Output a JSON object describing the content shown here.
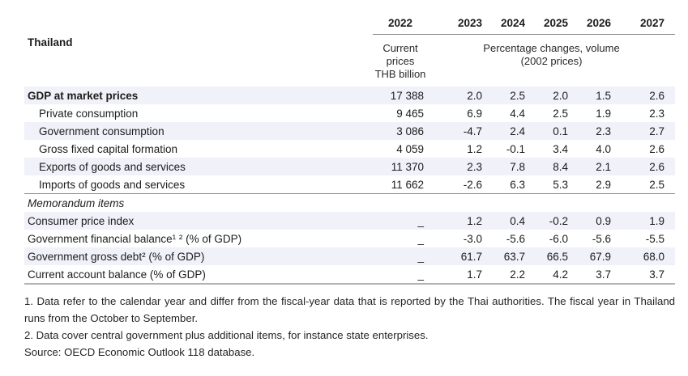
{
  "title": "Thailand",
  "header": {
    "years": [
      "2022",
      "2023",
      "2024",
      "2025",
      "2026",
      "2027"
    ],
    "col_2022_subtitle": [
      "Current prices",
      "THB billion"
    ],
    "pct_subtitle": [
      "Percentage changes, volume",
      "(2002 prices)"
    ]
  },
  "colors": {
    "row_shade": "#f0f1f9",
    "header_rule": "#8a8a8a",
    "section_rule": "#8c8c8c",
    "bottom_rule": "#b3b3b3"
  },
  "table": {
    "rows": [
      {
        "label": "GDP at market prices",
        "bold": true,
        "shaded": true,
        "values": [
          "17 388",
          "2.0",
          "2.5",
          "2.0",
          "1.5",
          "2.6"
        ]
      },
      {
        "label": "Private consumption",
        "indent": true,
        "values": [
          "9 465",
          "6.9",
          "4.4",
          "2.5",
          "1.9",
          "2.3"
        ]
      },
      {
        "label": "Government consumption",
        "indent": true,
        "shaded": true,
        "values": [
          "3 086",
          "-4.7",
          "2.4",
          "0.1",
          "2.3",
          "2.7"
        ]
      },
      {
        "label": "Gross fixed capital formation",
        "indent": true,
        "values": [
          "4 059",
          "1.2",
          "-0.1",
          "3.4",
          "4.0",
          "2.6"
        ]
      },
      {
        "label": "Exports of goods and services",
        "indent": true,
        "shaded": true,
        "values": [
          "11 370",
          "2.3",
          "7.8",
          "8.4",
          "2.1",
          "2.6"
        ]
      },
      {
        "label": "Imports of goods and services",
        "indent": true,
        "values": [
          "11 662",
          "-2.6",
          "6.3",
          "5.3",
          "2.9",
          "2.5"
        ]
      },
      {
        "label": "Memorandum items",
        "italic": true,
        "section": true,
        "top_border": true
      },
      {
        "label": "Consumer price index",
        "shaded": true,
        "values": [
          "_",
          "1.2",
          "0.4",
          "-0.2",
          "0.9",
          "1.9"
        ]
      },
      {
        "label": "Government financial balance¹ ² (% of GDP)",
        "values": [
          "_",
          "-3.0",
          "-5.6",
          "-6.0",
          "-5.6",
          "-5.5"
        ]
      },
      {
        "label": "Government gross debt² (% of GDP)",
        "shaded": true,
        "values": [
          "_",
          "61.7",
          "63.7",
          "66.5",
          "67.9",
          "68.0"
        ]
      },
      {
        "label": "Current account balance (% of GDP)",
        "bottom_border": true,
        "values": [
          "_",
          "1.7",
          "2.2",
          "4.2",
          "3.7",
          "3.7"
        ]
      }
    ]
  },
  "footnotes": [
    "1. Data refer to the calendar year and differ from the fiscal-year data that is reported by the Thai authorities. The fiscal year in Thailand runs from the October to September.",
    "2. Data cover central government plus additional items, for instance state enterprises."
  ],
  "source": "Source: OECD Economic Outlook 118 database."
}
